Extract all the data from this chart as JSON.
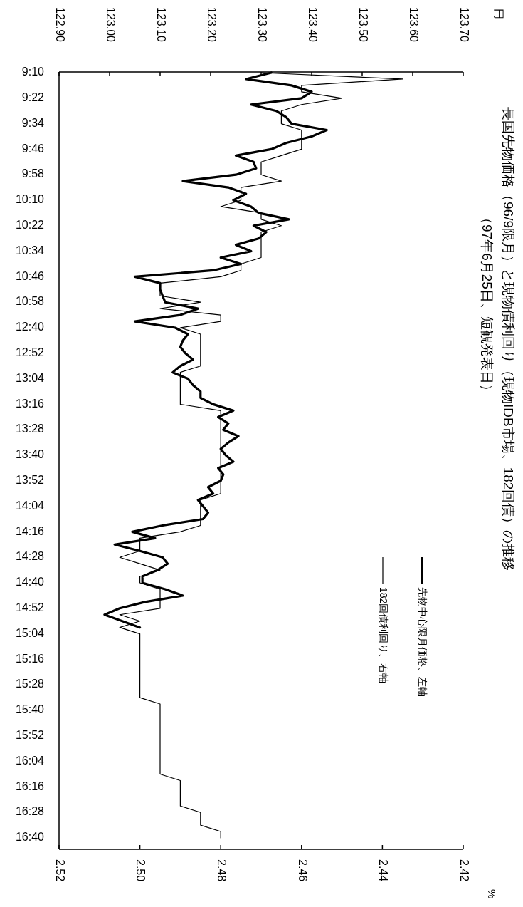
{
  "chart_data": {
    "type": "line",
    "title": "長国先物価格（96/9限月）と現物債利回り（現物IDB市場、182回債）の推移",
    "subtitle": "（97年6月25日、短観発表日）",
    "orientation": "horizontal",
    "annotations": [
      "円",
      "%"
    ],
    "categories": [
      "9:10",
      null,
      null,
      null,
      "9:22",
      null,
      null,
      null,
      "9:34",
      null,
      null,
      null,
      "9:46",
      null,
      null,
      null,
      "9:58",
      null,
      null,
      null,
      "10:10",
      null,
      null,
      null,
      "10:22",
      null,
      null,
      null,
      "10:34",
      null,
      null,
      null,
      "10:46",
      null,
      null,
      null,
      "10:58",
      null,
      null,
      null,
      "12:40",
      null,
      null,
      null,
      "12:52",
      null,
      null,
      null,
      "13:04",
      null,
      null,
      null,
      "13:16",
      null,
      null,
      null,
      "13:28",
      null,
      null,
      null,
      "13:40",
      null,
      null,
      null,
      "13:52",
      null,
      null,
      null,
      "14:04",
      null,
      null,
      null,
      "14:16",
      null,
      null,
      null,
      "14:28",
      null,
      null,
      null,
      "14:40",
      null,
      null,
      null,
      "14:52",
      null,
      null,
      null,
      "15:04",
      null,
      null,
      null,
      "15:16",
      null,
      null,
      null,
      "15:28",
      null,
      null,
      null,
      "15:40",
      null,
      null,
      null,
      "15:52",
      null,
      null,
      null,
      "16:04",
      null,
      null,
      null,
      "16:16",
      null,
      null,
      null,
      "16:28",
      null,
      null,
      null,
      "16:40"
    ],
    "series": [
      {
        "name": "先物中心限月価格、左軸",
        "color": "#000000",
        "axis": "x2",
        "values": [
          123.32,
          123.27,
          123.36,
          123.4,
          123.38,
          123.28,
          123.33,
          123.35,
          123.36,
          123.43,
          123.4,
          123.35,
          123.32,
          123.25,
          123.285,
          123.29,
          123.25,
          123.145,
          123.235,
          123.27,
          123.245,
          123.28,
          123.295,
          123.355,
          123.285,
          123.31,
          123.295,
          123.25,
          123.28,
          123.22,
          123.26,
          123.205,
          123.05,
          123.1,
          123.1,
          123.105,
          123.11,
          123.175,
          123.14,
          123.05,
          123.13,
          123.155,
          123.145,
          123.14,
          123.15,
          123.165,
          123.14,
          123.125,
          123.155,
          123.165,
          123.18,
          123.18,
          123.205,
          123.245,
          123.215,
          123.235,
          123.225,
          123.255,
          123.235,
          123.22,
          123.23,
          123.245,
          123.215,
          123.225,
          123.22,
          123.195,
          123.205,
          123.175,
          123.185,
          123.195,
          123.185,
          123.105,
          123.045,
          123.09,
          123.01,
          123.06,
          123.105,
          123.115,
          123.095,
          123.065,
          123.065,
          123.11,
          123.145,
          123.07,
          123.02,
          122.99,
          123.025,
          123.06,
          null,
          null,
          null,
          null,
          null,
          null,
          null,
          null,
          null,
          null,
          null,
          null,
          null,
          null,
          null,
          null,
          null,
          null,
          null,
          null,
          null,
          null,
          null,
          null,
          null,
          null,
          null,
          null,
          null,
          null,
          null,
          null,
          null
        ]
      },
      {
        "name": "182回債利回り、右軸",
        "color": "#000000",
        "values": [
          2.47,
          2.435,
          2.46,
          2.46,
          2.45,
          2.46,
          2.465,
          2.465,
          2.465,
          2.46,
          2.46,
          2.46,
          2.46,
          2.465,
          2.47,
          2.47,
          2.47,
          2.465,
          2.475,
          2.475,
          2.475,
          2.48,
          2.47,
          2.47,
          2.465,
          2.47,
          2.47,
          2.47,
          2.47,
          2.47,
          2.475,
          2.475,
          2.48,
          2.495,
          2.495,
          2.495,
          2.485,
          2.495,
          2.48,
          2.48,
          2.49,
          2.485,
          2.485,
          2.485,
          2.485,
          2.485,
          2.485,
          2.49,
          2.49,
          2.49,
          2.49,
          2.49,
          2.49,
          2.48,
          2.48,
          2.48,
          2.48,
          2.48,
          2.48,
          2.48,
          2.48,
          2.48,
          2.48,
          2.48,
          2.48,
          2.48,
          2.48,
          2.485,
          2.485,
          2.485,
          2.485,
          2.485,
          2.49,
          2.5,
          2.5,
          2.5,
          2.505,
          2.5,
          2.495,
          2.5,
          2.5,
          2.495,
          2.495,
          2.495,
          2.495,
          2.505,
          2.5,
          2.505,
          2.5,
          2.5,
          2.5,
          2.5,
          2.5,
          2.5,
          2.5,
          2.5,
          2.5,
          2.5,
          2.5,
          2.495,
          2.495,
          2.495,
          2.495,
          2.495,
          2.495,
          2.495,
          2.495,
          2.495,
          2.495,
          2.495,
          2.495,
          2.49,
          2.49,
          2.49,
          2.49,
          2.49,
          2.485,
          2.485,
          2.485,
          2.48,
          2.48
        ]
      }
    ],
    "x2lim": [
      122.9,
      123.7
    ],
    "x2ticks": [
      {
        "value": 122.9,
        "label": "122.90"
      },
      {
        "value": 123.0,
        "label": "123.00"
      },
      {
        "value": 123.1,
        "label": "123.10"
      },
      {
        "value": 123.2,
        "label": "123.20"
      },
      {
        "value": 123.3,
        "label": "123.30"
      },
      {
        "value": 123.4,
        "label": "123.40"
      },
      {
        "value": 123.5,
        "label": "123.50"
      },
      {
        "value": 123.6,
        "label": "123.60"
      },
      {
        "value": 123.7,
        "label": "123.70"
      }
    ],
    "xlim": [
      2.52,
      2.42
    ],
    "xticks": [
      {
        "value": 2.52,
        "label": "2.52"
      },
      {
        "value": 2.5,
        "label": "2.50"
      },
      {
        "value": 2.48,
        "label": "2.48"
      },
      {
        "value": 2.46,
        "label": "2.46"
      },
      {
        "value": 2.44,
        "label": "2.44"
      },
      {
        "value": 2.42,
        "label": "2.42"
      }
    ],
    "legend": "bottom right",
    "grid": false
  }
}
